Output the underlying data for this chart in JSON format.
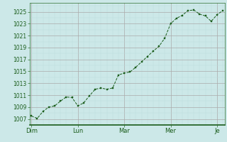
{
  "title": "",
  "background_color": "#cce8e8",
  "plot_bg_color": "#cce8e8",
  "line_color": "#1a5c1a",
  "marker_color": "#1a5c1a",
  "grid_color_major": "#aaaaaa",
  "grid_color_minor": "#bbdddd",
  "x_day_labels": [
    "Dim",
    "Lun",
    "Mar",
    "Mer",
    "Je"
  ],
  "x_day_positions": [
    0,
    24,
    48,
    72,
    96
  ],
  "yticks": [
    1007,
    1009,
    1011,
    1013,
    1015,
    1017,
    1019,
    1021,
    1023,
    1025
  ],
  "ylim": [
    1006.0,
    1026.5
  ],
  "xlim": [
    -1,
    100
  ],
  "data_x": [
    0,
    3,
    6,
    9,
    12,
    15,
    18,
    21,
    24,
    27,
    30,
    33,
    36,
    39,
    42,
    45,
    48,
    51,
    54,
    57,
    60,
    63,
    66,
    69,
    72,
    75,
    78,
    81,
    84,
    87,
    90,
    93,
    96,
    99
  ],
  "data_y": [
    1007.5,
    1007.1,
    1008.3,
    1009.0,
    1009.2,
    1010.0,
    1010.7,
    1010.6,
    1009.2,
    1009.7,
    1010.9,
    1012.0,
    1012.2,
    1012.0,
    1012.2,
    1014.4,
    1014.7,
    1014.9,
    1015.7,
    1016.6,
    1017.5,
    1018.4,
    1019.2,
    1020.6,
    1023.0,
    1023.9,
    1024.4,
    1025.2,
    1025.3,
    1024.6,
    1024.3,
    1023.4,
    1024.5,
    1025.2
  ],
  "tick_label_color": "#1a5c1a",
  "fontsize_tick": 5.5,
  "fontsize_xlabel": 6.0,
  "linewidth": 0.7,
  "markersize": 1.8
}
